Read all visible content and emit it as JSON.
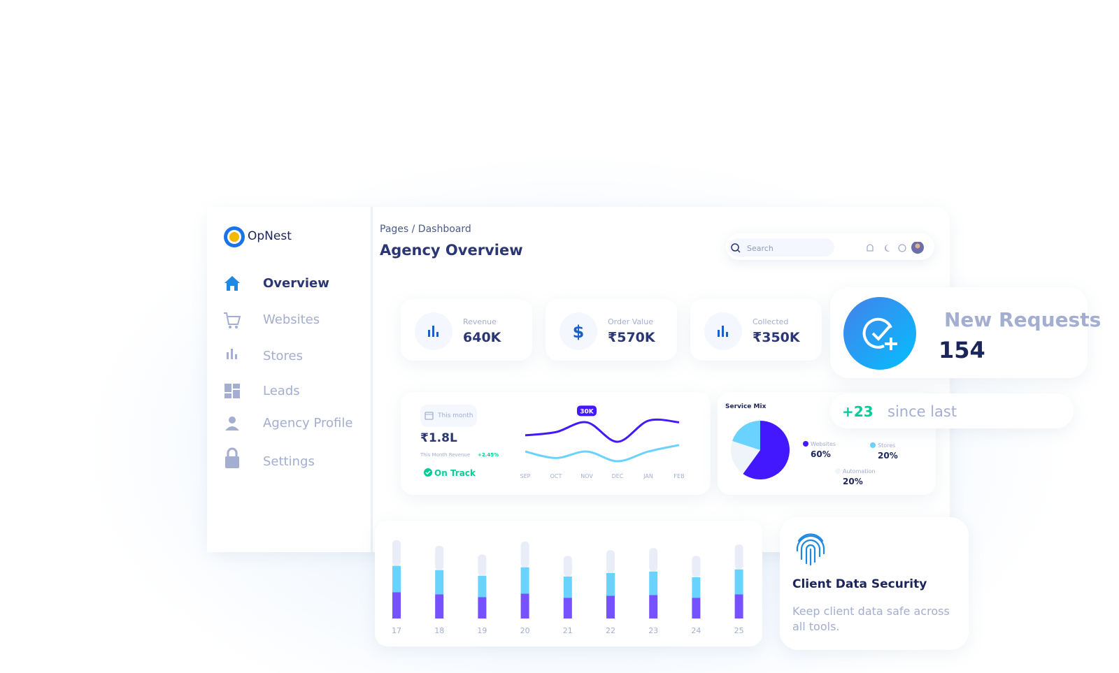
{
  "brand": "OpNest",
  "breadcrumb": "Pages / Dashboard",
  "page_title": "Agency Overview",
  "search_placeholder": "Search",
  "nav": [
    "Overview",
    "Websites",
    "Stores",
    "Leads",
    "Agency Profile",
    "Settings"
  ],
  "stats": [
    {
      "label": "Revenue",
      "value": "640K"
    },
    {
      "label": "Order Value",
      "value": "₹570K"
    },
    {
      "label": "Collected",
      "value": "₹350K"
    }
  ],
  "new_requests": {
    "title": "New Requests",
    "count": "154",
    "delta": "+23",
    "delta_label": "since last"
  },
  "revenue_card": {
    "period": "This month",
    "amount": "₹1.8L",
    "caption": "This Month Revenue",
    "change": "+2.45%",
    "status": "On Track"
  },
  "security": {
    "title": "Client Data Security",
    "text": "Keep client data safe across all tools."
  },
  "chart_data": [
    {
      "type": "line",
      "categories": [
        "SEP",
        "OCT",
        "NOV",
        "DEC",
        "JAN",
        "FEB"
      ],
      "series": [
        {
          "color": "#4318ff",
          "values": [
            22000,
            24000,
            30000,
            18000,
            31000,
            30000
          ],
          "value_labels": [
            null,
            null,
            "30K",
            null,
            null,
            null
          ]
        },
        {
          "color": "#6ad2ff",
          "values": [
            12000,
            8000,
            12000,
            6000,
            12000,
            16000
          ]
        }
      ]
    },
    {
      "type": "pie",
      "title": "Service Mix",
      "categories": [
        "Websites",
        "Stores",
        "Automation"
      ],
      "values": [
        60,
        20,
        20
      ],
      "value_labels": [
        "60%",
        "20%",
        "20%"
      ],
      "colors": [
        "#4318ff",
        "#6ad2ff",
        "#eff4fb"
      ]
    },
    {
      "type": "bar",
      "stacked": true,
      "categories": [
        "17",
        "18",
        "19",
        "20",
        "21",
        "22",
        "23",
        "24",
        "25"
      ],
      "series": [
        {
          "color": "#7551ff",
          "values": [
            37,
            34,
            30,
            35,
            29,
            32,
            33,
            29,
            34
          ]
        },
        {
          "color": "#6ad2ff",
          "values": [
            37,
            34,
            30,
            37,
            30,
            32,
            33,
            29,
            35
          ]
        },
        {
          "color": "#e9edf7",
          "values": [
            36,
            34,
            30,
            36,
            29,
            32,
            33,
            30,
            35
          ]
        }
      ]
    }
  ]
}
